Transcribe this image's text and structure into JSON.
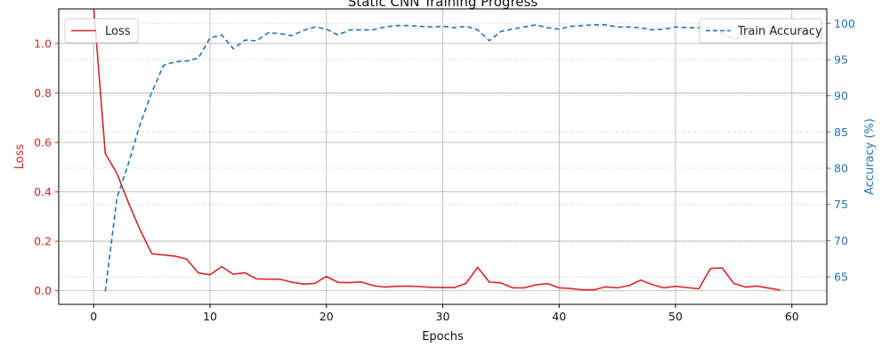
{
  "chart_data": {
    "type": "line",
    "title": "Static CNN Training Progress",
    "xlabel": "Epochs",
    "ylabel_left": "Loss",
    "ylabel_right": "Accuracy (%)",
    "xlim": [
      -3,
      63
    ],
    "ylim_left": [
      -0.055,
      1.14
    ],
    "ylim_right": [
      61.2,
      102
    ],
    "x_ticks": [
      0,
      10,
      20,
      30,
      40,
      50,
      60
    ],
    "y_ticks_left": [
      0.0,
      0.2,
      0.4,
      0.6,
      0.8,
      1.0
    ],
    "y_ticks_right": [
      65,
      70,
      75,
      80,
      85,
      90,
      95,
      100
    ],
    "grid": true,
    "series": [
      {
        "name": "Loss",
        "axis": "left",
        "color": "#d62728",
        "style": "solid",
        "x": [
          0,
          1,
          2,
          3,
          4,
          5,
          6,
          7,
          8,
          9,
          10,
          11,
          12,
          13,
          14,
          15,
          16,
          17,
          18,
          19,
          20,
          21,
          22,
          23,
          24,
          25,
          26,
          27,
          28,
          29,
          30,
          31,
          32,
          33,
          34,
          35,
          36,
          37,
          38,
          39,
          40,
          41,
          42,
          43,
          44,
          45,
          46,
          47,
          48,
          49,
          50,
          51,
          52,
          53,
          54,
          55,
          56,
          57,
          58,
          59
        ],
        "y": [
          1.15,
          0.555,
          0.475,
          0.355,
          0.245,
          0.15,
          0.145,
          0.14,
          0.128,
          0.072,
          0.065,
          0.098,
          0.067,
          0.073,
          0.048,
          0.047,
          0.047,
          0.035,
          0.027,
          0.03,
          0.058,
          0.034,
          0.033,
          0.036,
          0.021,
          0.015,
          0.018,
          0.019,
          0.017,
          0.014,
          0.013,
          0.013,
          0.03,
          0.095,
          0.035,
          0.032,
          0.012,
          0.012,
          0.024,
          0.029,
          0.012,
          0.009,
          0.004,
          0.004,
          0.016,
          0.012,
          0.021,
          0.043,
          0.025,
          0.012,
          0.018,
          0.013,
          0.008,
          0.09,
          0.093,
          0.03,
          0.015,
          0.019,
          0.011,
          0.003
        ]
      },
      {
        "name": "Train Accuracy",
        "axis": "right",
        "color": "#1f77b4",
        "style": "dashed",
        "x": [
          1,
          2,
          3,
          4,
          5,
          6,
          7,
          8,
          9,
          10,
          11,
          12,
          13,
          14,
          15,
          16,
          17,
          18,
          19,
          20,
          21,
          22,
          23,
          24,
          25,
          26,
          27,
          28,
          29,
          30,
          31,
          32,
          33,
          34,
          35,
          36,
          37,
          38,
          39,
          40,
          41,
          42,
          43,
          44,
          45,
          46,
          47,
          48,
          49,
          50,
          51,
          52,
          53,
          54,
          55,
          56
        ],
        "y": [
          63.0,
          75.9,
          80.7,
          86.1,
          90.5,
          94.2,
          94.7,
          94.8,
          95.2,
          98.0,
          98.4,
          96.5,
          97.7,
          97.6,
          98.7,
          98.6,
          98.3,
          99.0,
          99.5,
          99.2,
          98.4,
          99.1,
          99.1,
          99.1,
          99.5,
          99.7,
          99.7,
          99.6,
          99.5,
          99.6,
          99.4,
          99.6,
          99.1,
          97.6,
          98.9,
          99.2,
          99.5,
          99.8,
          99.4,
          99.2,
          99.6,
          99.7,
          99.8,
          99.8,
          99.5,
          99.5,
          99.4,
          99.1,
          99.2,
          99.5,
          99.4,
          99.4,
          99.4,
          98.6,
          97.8,
          98.3
        ]
      }
    ],
    "legends": [
      {
        "placement": "upper-left",
        "entries": [
          "Loss"
        ]
      },
      {
        "placement": "upper-right",
        "entries": [
          "Train Accuracy"
        ]
      }
    ]
  }
}
